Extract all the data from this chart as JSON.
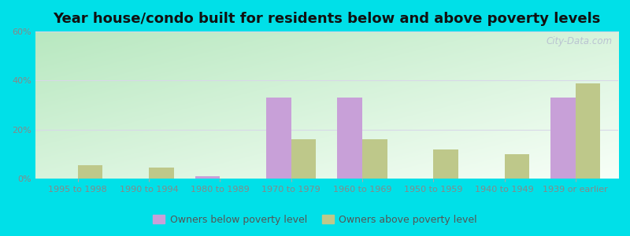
{
  "title": "Year house/condo built for residents below and above poverty levels",
  "categories": [
    "1995 to 1998",
    "1990 to 1994",
    "1980 to 1989",
    "1970 to 1979",
    "1960 to 1969",
    "1950 to 1959",
    "1940 to 1949",
    "1939 or earlier"
  ],
  "below_poverty": [
    0,
    0,
    0.8,
    33,
    33,
    0,
    0,
    33
  ],
  "above_poverty": [
    5.5,
    4.5,
    0,
    16,
    16,
    12,
    10,
    39
  ],
  "color_below": "#c8a0d8",
  "color_above": "#bec88a",
  "ylim": [
    0,
    60
  ],
  "yticks": [
    0,
    20,
    40,
    60
  ],
  "ytick_labels": [
    "0%",
    "20%",
    "40%",
    "60%"
  ],
  "bg_color_green": "#b8e8c0",
  "bg_color_white": "#f8fff8",
  "outer_bg": "#00e0e8",
  "bar_width": 0.35,
  "legend_below": "Owners below poverty level",
  "legend_above": "Owners above poverty level",
  "watermark": "City-Data.com",
  "grid_color": "#d8d8e8",
  "tick_color": "#888888",
  "title_fontsize": 13,
  "legend_fontsize": 9,
  "tick_fontsize": 8
}
